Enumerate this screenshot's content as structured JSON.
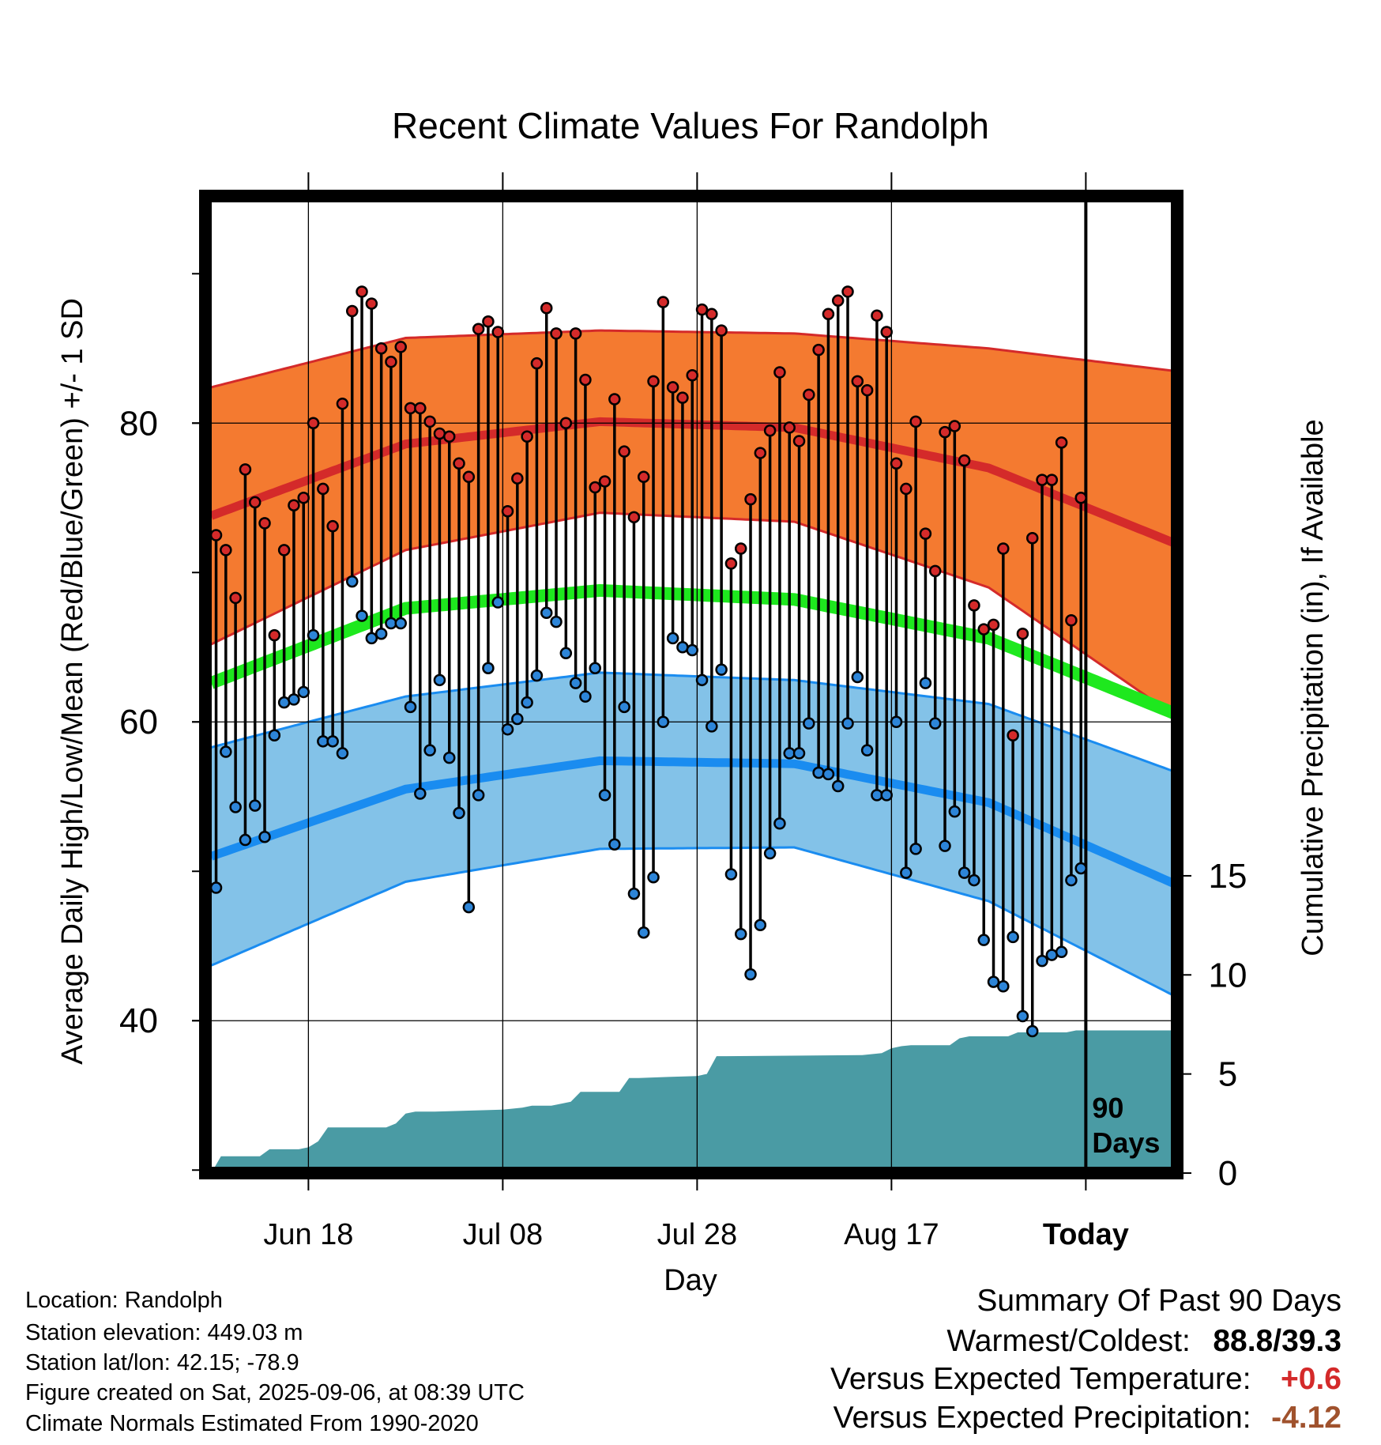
{
  "chart_data": {
    "type": "line",
    "title": "Recent Climate Values For Randolph",
    "xlabel": "Day",
    "ylabel": "Average Daily High/Low/Mean (Red/Blue/Green) +/- 1 SD",
    "y2label": "Cumulative Precipitation (in), If Available",
    "ylim": [
      29.8,
      95.2
    ],
    "y2lim": [
      0,
      49.3
    ],
    "y_ticks": [
      "40",
      "60",
      "80"
    ],
    "y2_ticks": [
      "0",
      "5",
      "10",
      "15"
    ],
    "x_tick_labels": [
      {
        "label": "Jun 18",
        "day": 10
      },
      {
        "label": "Jul 08",
        "day": 30
      },
      {
        "label": "Jul 28",
        "day": 50
      },
      {
        "label": "Aug 17",
        "day": 70
      },
      {
        "label": "Today",
        "day": 90
      }
    ],
    "x_range_days": [
      -0.6,
      99.4
    ],
    "today_marker": {
      "day": 90,
      "label_line1": "90",
      "label_line2": "Days"
    },
    "colors": {
      "high_band": "#f47a30",
      "high_line": "#d42a2a",
      "low_band": "#83c2e8",
      "low_line": "#1a8cf0",
      "mean_line": "#1ee81e",
      "precip": "#4a9ba4",
      "high_dot": "#d42a2a",
      "low_dot": "#2d85d8"
    },
    "normals": {
      "high_mean": {
        "day": [
          0,
          20,
          40,
          60,
          80,
          99
        ],
        "value": [
          73.8,
          78.6,
          80.1,
          79.7,
          77.0,
          72.0
        ]
      },
      "high_sd": {
        "day": [
          0,
          20,
          40,
          60,
          80,
          99
        ],
        "value": [
          8.6,
          7.1,
          6.1,
          6.3,
          8.0,
          11.5
        ]
      },
      "low_mean": {
        "day": [
          0,
          20,
          40,
          60,
          80,
          99
        ],
        "value": [
          51.0,
          55.5,
          57.4,
          57.2,
          54.6,
          49.2
        ]
      },
      "low_sd": {
        "day": [
          0,
          20,
          40,
          60,
          80,
          99
        ],
        "value": [
          7.3,
          6.2,
          5.9,
          5.6,
          6.6,
          7.5
        ]
      },
      "mean": {
        "day": [
          0,
          20,
          40,
          60,
          80,
          99
        ],
        "value": [
          62.6,
          67.6,
          68.8,
          68.2,
          65.6,
          60.6
        ]
      }
    },
    "daily_high": [
      72.5,
      71.5,
      68.3,
      76.9,
      74.7,
      73.3,
      65.8,
      71.5,
      74.5,
      75.0,
      80.0,
      75.6,
      73.1,
      81.3,
      87.5,
      88.8,
      88.0,
      85.0,
      84.1,
      85.1,
      81.0,
      81.0,
      80.1,
      79.3,
      79.1,
      77.3,
      76.4,
      86.3,
      86.8,
      86.1,
      74.1,
      76.3,
      79.1,
      84.0,
      87.7,
      86.0,
      80.0,
      86.0,
      82.9,
      75.7,
      76.1,
      81.6,
      78.1,
      73.7,
      76.4,
      82.8,
      88.1,
      82.4,
      81.7,
      83.2,
      87.6,
      87.3,
      86.2,
      70.6,
      71.6,
      74.9,
      78.0,
      79.5,
      83.4,
      79.7,
      78.8,
      81.9,
      84.9,
      87.3,
      88.2,
      88.8,
      82.8,
      82.2,
      87.2,
      86.1,
      77.3,
      75.6,
      80.1,
      72.6,
      70.1,
      79.4,
      79.8,
      77.5,
      67.8,
      66.2,
      66.5,
      71.6,
      59.1,
      65.9,
      72.3,
      76.2,
      76.2,
      78.7,
      66.8,
      75.0
    ],
    "daily_low": [
      48.9,
      58.0,
      54.3,
      52.1,
      54.4,
      52.3,
      59.1,
      61.3,
      61.5,
      62.0,
      65.8,
      58.7,
      58.7,
      57.9,
      69.4,
      67.1,
      65.6,
      65.9,
      66.6,
      66.6,
      61.0,
      55.2,
      58.1,
      62.8,
      57.6,
      53.9,
      47.6,
      55.1,
      63.6,
      68.0,
      59.5,
      60.2,
      61.3,
      63.1,
      67.3,
      66.7,
      64.6,
      62.6,
      61.7,
      63.6,
      55.1,
      51.8,
      61.0,
      48.5,
      45.9,
      49.6,
      60.0,
      65.6,
      65.0,
      64.8,
      62.8,
      59.7,
      63.5,
      49.8,
      45.8,
      43.1,
      46.4,
      51.2,
      53.2,
      57.9,
      57.9,
      59.9,
      56.6,
      56.5,
      55.7,
      59.9,
      63.0,
      58.1,
      55.1,
      55.1,
      60.0,
      49.9,
      51.5,
      62.6,
      59.9,
      51.7,
      54.0,
      49.9,
      49.4,
      45.4,
      42.6,
      42.3,
      45.6,
      40.3,
      39.3,
      44.0,
      44.4,
      44.6,
      49.4,
      50.2
    ],
    "precip_cumulative": {
      "day": [
        0,
        1,
        5,
        6,
        9,
        10,
        11,
        12,
        18,
        19,
        20,
        21,
        23,
        30,
        32,
        33,
        35,
        37,
        38,
        42,
        43,
        44,
        47,
        50,
        51,
        52,
        53,
        67,
        69,
        70,
        71,
        72,
        76,
        77,
        78,
        82,
        83,
        88,
        89,
        90,
        99
      ],
      "value": [
        0.0,
        0.85,
        0.85,
        1.2,
        1.2,
        1.3,
        1.6,
        2.3,
        2.3,
        2.5,
        3.0,
        3.1,
        3.1,
        3.2,
        3.3,
        3.4,
        3.4,
        3.6,
        4.1,
        4.1,
        4.8,
        4.8,
        4.85,
        4.9,
        5.0,
        5.9,
        5.9,
        5.95,
        6.05,
        6.3,
        6.4,
        6.45,
        6.45,
        6.8,
        6.9,
        6.9,
        7.1,
        7.1,
        7.2,
        7.2,
        7.2
      ]
    }
  },
  "info": {
    "location": "Location: Randolph",
    "elevation": "Station elevation: 449.03 m",
    "latlon": "Station lat/lon: 42.15; -78.9",
    "created": "Figure created on Sat, 2025-09-06, at 08:39 UTC",
    "normals": "Climate Normals Estimated From 1990-2020"
  },
  "summary": {
    "heading": "Summary Of Past 90 Days",
    "warm_cold_label": "Warmest/Coldest:",
    "warm_cold_value": "88.8/39.3",
    "temp_label": "Versus Expected Temperature:",
    "temp_value": "+0.6",
    "temp_color": "#d42a2a",
    "precip_label": "Versus Expected Precipitation:",
    "precip_value": "-4.12",
    "precip_color": "#a0522d"
  }
}
